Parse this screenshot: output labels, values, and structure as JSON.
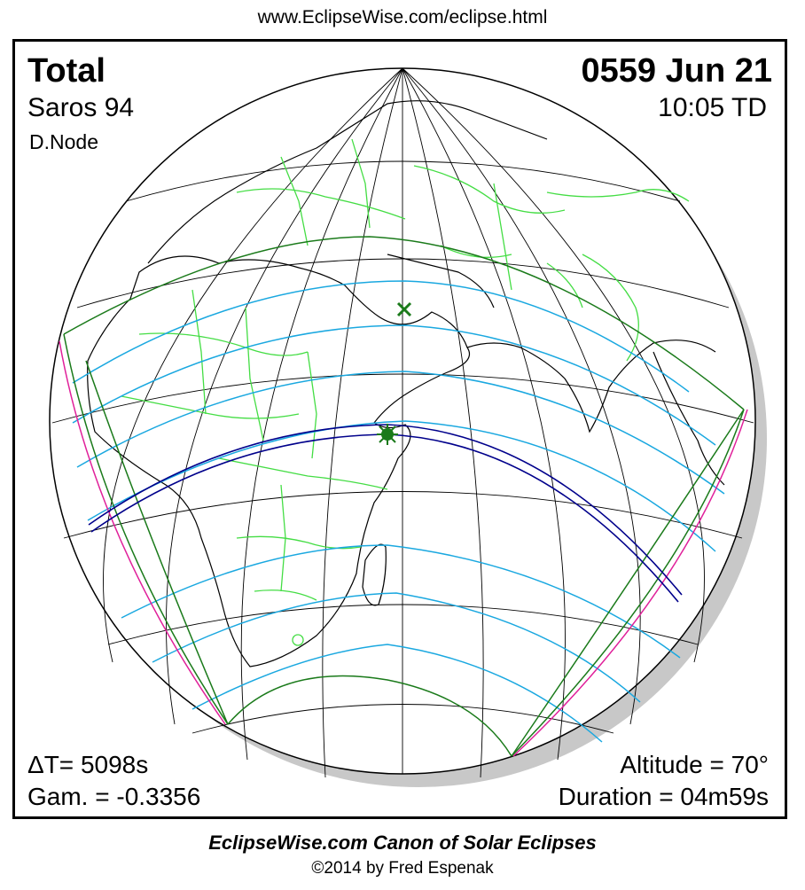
{
  "header": {
    "url": "www.EclipseWise.com/eclipse.html"
  },
  "eclipse": {
    "type": "Total",
    "saros": "Saros  94",
    "node": "D.Node",
    "date": "0559 Jun 21",
    "time": "10:05 TD",
    "delta_t": "ΔT=   5098s",
    "gamma": "Gam. = -0.3356",
    "altitude": "Altitude = 70°",
    "duration": "Duration = 04m59s"
  },
  "map": {
    "projection": "orthographic",
    "greatest_eclipse_marker": "star",
    "subsolar_marker": "cross",
    "colors": {
      "borders": "#44dd44",
      "coastline": "#000000",
      "penumbra_limits": "#1a7a1a",
      "partial_lines": "#1aa8e0",
      "umbra_path": "#00008b",
      "rise_set_curves": "#e0209a",
      "shadow": "#c8c8c8",
      "graticule": "#000000"
    }
  },
  "footer": {
    "canon": "EclipseWise.com Canon of Solar Eclipses",
    "copyright": "©2014 by Fred Espenak"
  }
}
